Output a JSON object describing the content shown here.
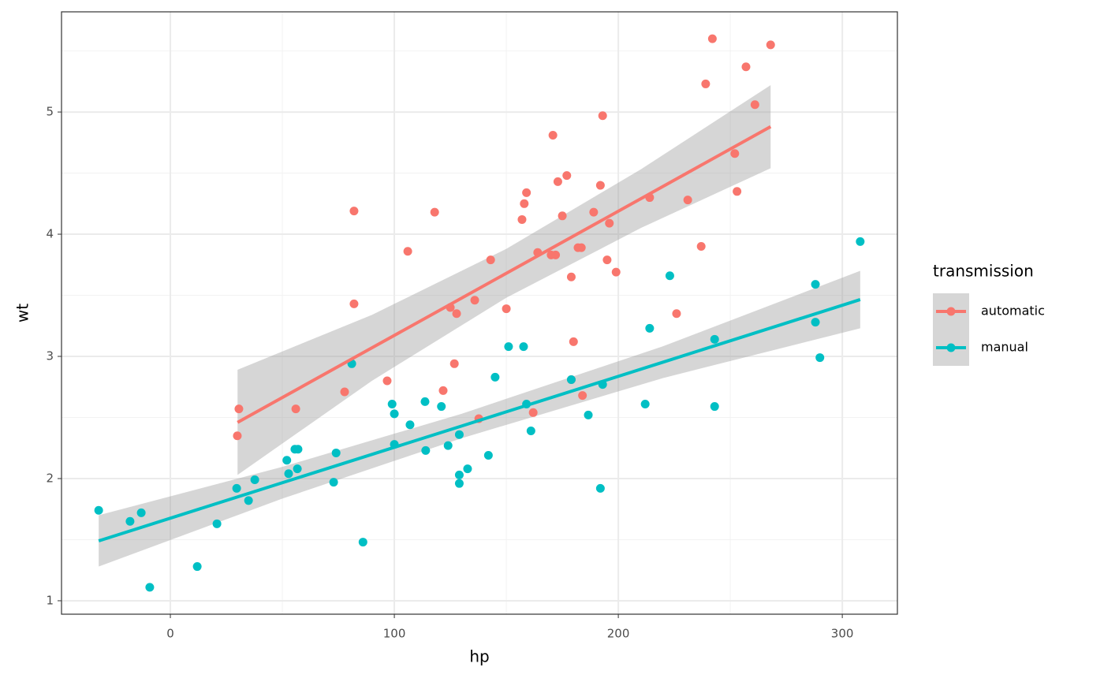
{
  "chart_data": {
    "type": "scatter",
    "x_label": "hp",
    "y_label": "wt",
    "legend_title": "transmission",
    "xlim": [
      -48.6,
      324.6
    ],
    "ylim": [
      0.89,
      5.82
    ],
    "xticks": [
      0,
      100,
      200,
      300
    ],
    "yticks": [
      1,
      2,
      3,
      4,
      5
    ],
    "xminor": [
      50,
      150,
      250
    ],
    "yminor": [
      1.5,
      2.5,
      3.5,
      4.5,
      5.5
    ],
    "grid": true,
    "legend_position": "right",
    "series": [
      {
        "name": "automatic",
        "color": "#F8766D",
        "x": [
          30.6,
          29.9,
          56,
          77.8,
          82,
          82,
          96.8,
          106,
          118,
          121.8,
          125,
          127.8,
          126.8,
          135.9,
          137.7,
          143,
          150,
          157,
          158,
          159,
          162,
          164,
          170.8,
          170,
          172,
          173,
          175,
          177,
          179,
          180,
          179,
          182,
          183.5,
          184,
          189,
          192,
          193,
          195,
          196,
          199,
          214,
          226,
          231,
          237,
          239,
          242,
          252,
          253,
          257,
          261,
          268
        ],
        "values": [
          2.57,
          2.35,
          2.57,
          2.71,
          4.19,
          3.43,
          2.8,
          3.86,
          4.18,
          2.72,
          3.4,
          3.35,
          2.94,
          3.46,
          2.49,
          3.79,
          3.39,
          4.12,
          4.25,
          4.34,
          2.54,
          3.85,
          4.81,
          3.83,
          3.83,
          4.43,
          4.15,
          4.48,
          3.65,
          3.12,
          2.81,
          3.89,
          3.89,
          2.68,
          4.18,
          4.4,
          4.97,
          3.79,
          4.09,
          3.69,
          4.3,
          3.35,
          4.28,
          3.9,
          5.23,
          5.6,
          4.66,
          4.35,
          5.37,
          5.06,
          5.55
        ],
        "fit": {
          "x": [
            30,
            90,
            150,
            210,
            268
          ],
          "values": [
            2.46,
            3.07,
            3.68,
            4.29,
            4.88
          ],
          "lower": [
            2.03,
            2.8,
            3.48,
            4.05,
            4.54
          ],
          "upper": [
            2.89,
            3.34,
            3.88,
            4.53,
            5.22
          ]
        }
      },
      {
        "name": "manual",
        "color": "#00BFC4",
        "x": [
          -32,
          -18,
          -13,
          -9.2,
          12,
          20.8,
          29.6,
          34.9,
          37.7,
          52,
          52.8,
          55.6,
          57,
          56.7,
          72.9,
          74,
          81,
          86,
          99,
          100,
          100,
          107,
          113.7,
          114,
          121,
          124,
          129,
          129,
          129,
          132.7,
          142,
          145,
          151,
          157.7,
          159,
          161,
          179,
          186.6,
          192,
          193,
          212,
          214,
          223,
          243,
          243,
          288,
          288,
          290,
          308
        ],
        "values": [
          1.74,
          1.65,
          1.72,
          1.11,
          1.28,
          1.63,
          1.92,
          1.82,
          1.99,
          2.15,
          2.04,
          2.24,
          2.24,
          2.08,
          1.97,
          2.21,
          2.94,
          1.48,
          2.61,
          2.53,
          2.28,
          2.44,
          2.63,
          2.23,
          2.59,
          2.27,
          2.36,
          2.03,
          1.96,
          2.08,
          2.19,
          2.83,
          3.08,
          3.08,
          2.61,
          2.39,
          2.81,
          2.52,
          1.92,
          2.77,
          2.61,
          3.23,
          3.66,
          3.14,
          2.59,
          3.59,
          3.28,
          2.99,
          3.94
        ],
        "fit": {
          "x": [
            -32,
            50,
            130,
            220,
            308
          ],
          "values": [
            1.49,
            1.966,
            2.43,
            2.953,
            3.465
          ],
          "lower": [
            1.28,
            1.836,
            2.33,
            2.823,
            3.23
          ],
          "upper": [
            1.7,
            2.096,
            2.53,
            3.083,
            3.7
          ]
        }
      }
    ]
  }
}
